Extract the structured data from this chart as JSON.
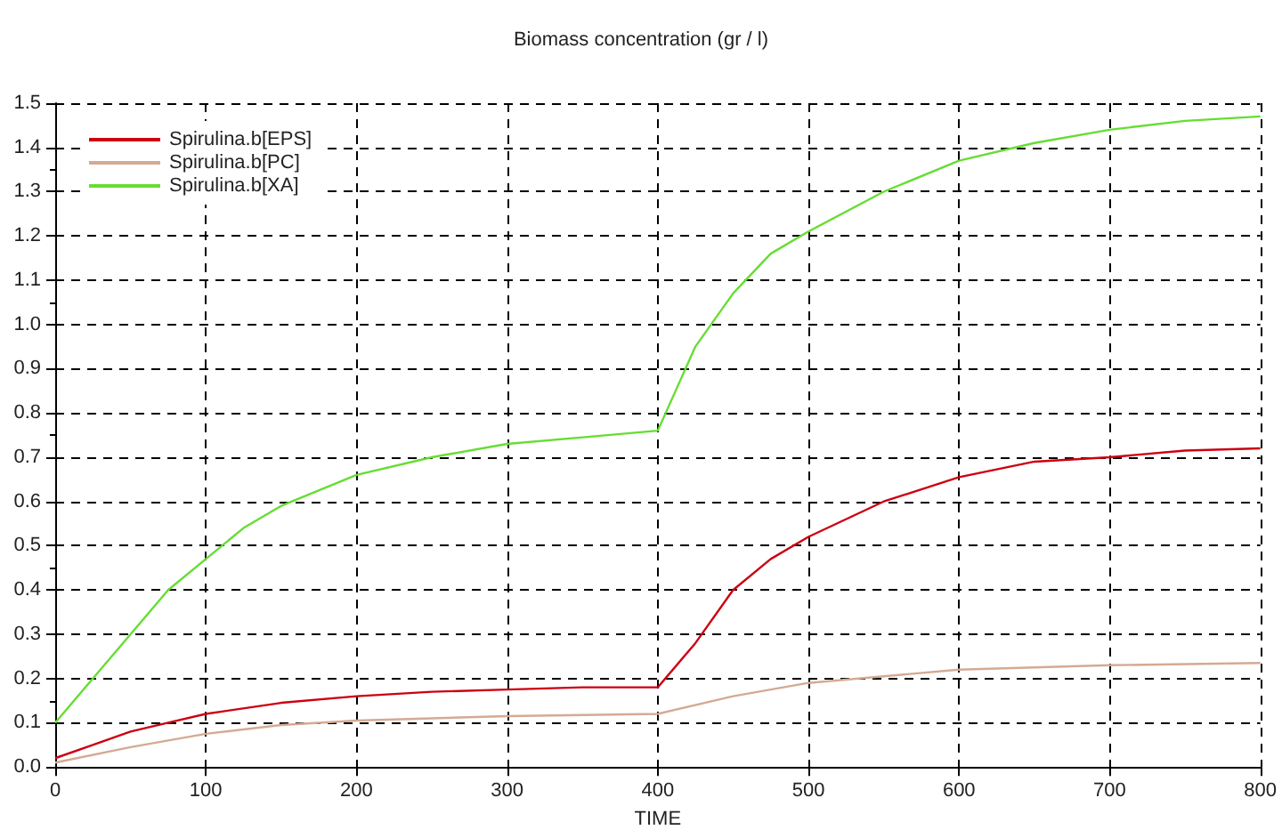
{
  "chart_data": {
    "type": "line",
    "title": "Biomass concentration (gr / l)",
    "xlabel": "TIME",
    "xlim": [
      0,
      800
    ],
    "xticks": [
      0,
      100,
      200,
      300,
      400,
      500,
      600,
      700,
      800
    ],
    "ylim": [
      0,
      1.5
    ],
    "yticks": [
      {
        "value": 0,
        "label": "0.0"
      },
      0.1,
      0.2,
      0.3,
      0.4,
      0.5,
      0.6,
      0.7,
      0.8,
      0.9,
      {
        "value": 1,
        "label": "1.0"
      },
      1.1,
      1.2,
      1.3,
      1.4,
      1.5
    ],
    "grid": true,
    "legend": "top left",
    "marker": "none",
    "line_style": "solid",
    "series": [
      {
        "name": "Spirulina.b[EPS]",
        "color": "#cc0011",
        "x": [
          0,
          25,
          50,
          75,
          100,
          150,
          200,
          250,
          300,
          350,
          400,
          425,
          450,
          475,
          500,
          550,
          600,
          650,
          700,
          750,
          800
        ],
        "values": [
          0.02,
          0.05,
          0.08,
          0.1,
          0.12,
          0.145,
          0.16,
          0.17,
          0.175,
          0.18,
          0.18,
          0.28,
          0.4,
          0.47,
          0.52,
          0.6,
          0.655,
          0.69,
          0.7,
          0.715,
          0.72
        ]
      },
      {
        "name": "Spirulina.b[PC]",
        "color": "#d4aa94",
        "x": [
          0,
          50,
          100,
          150,
          200,
          300,
          400,
          450,
          500,
          550,
          600,
          700,
          800
        ],
        "values": [
          0.01,
          0.045,
          0.075,
          0.095,
          0.105,
          0.115,
          0.12,
          0.16,
          0.19,
          0.205,
          0.22,
          0.23,
          0.235
        ]
      },
      {
        "name": "Spirulina.b[XA]",
        "color": "#66dd33",
        "x": [
          0,
          25,
          50,
          75,
          100,
          125,
          150,
          200,
          250,
          300,
          350,
          400,
          425,
          450,
          475,
          500,
          550,
          600,
          650,
          700,
          750,
          800
        ],
        "values": [
          0.1,
          0.2,
          0.3,
          0.4,
          0.47,
          0.54,
          0.59,
          0.66,
          0.7,
          0.73,
          0.745,
          0.76,
          0.95,
          1.07,
          1.16,
          1.21,
          1.3,
          1.37,
          1.41,
          1.44,
          1.46,
          1.47
        ]
      }
    ]
  }
}
